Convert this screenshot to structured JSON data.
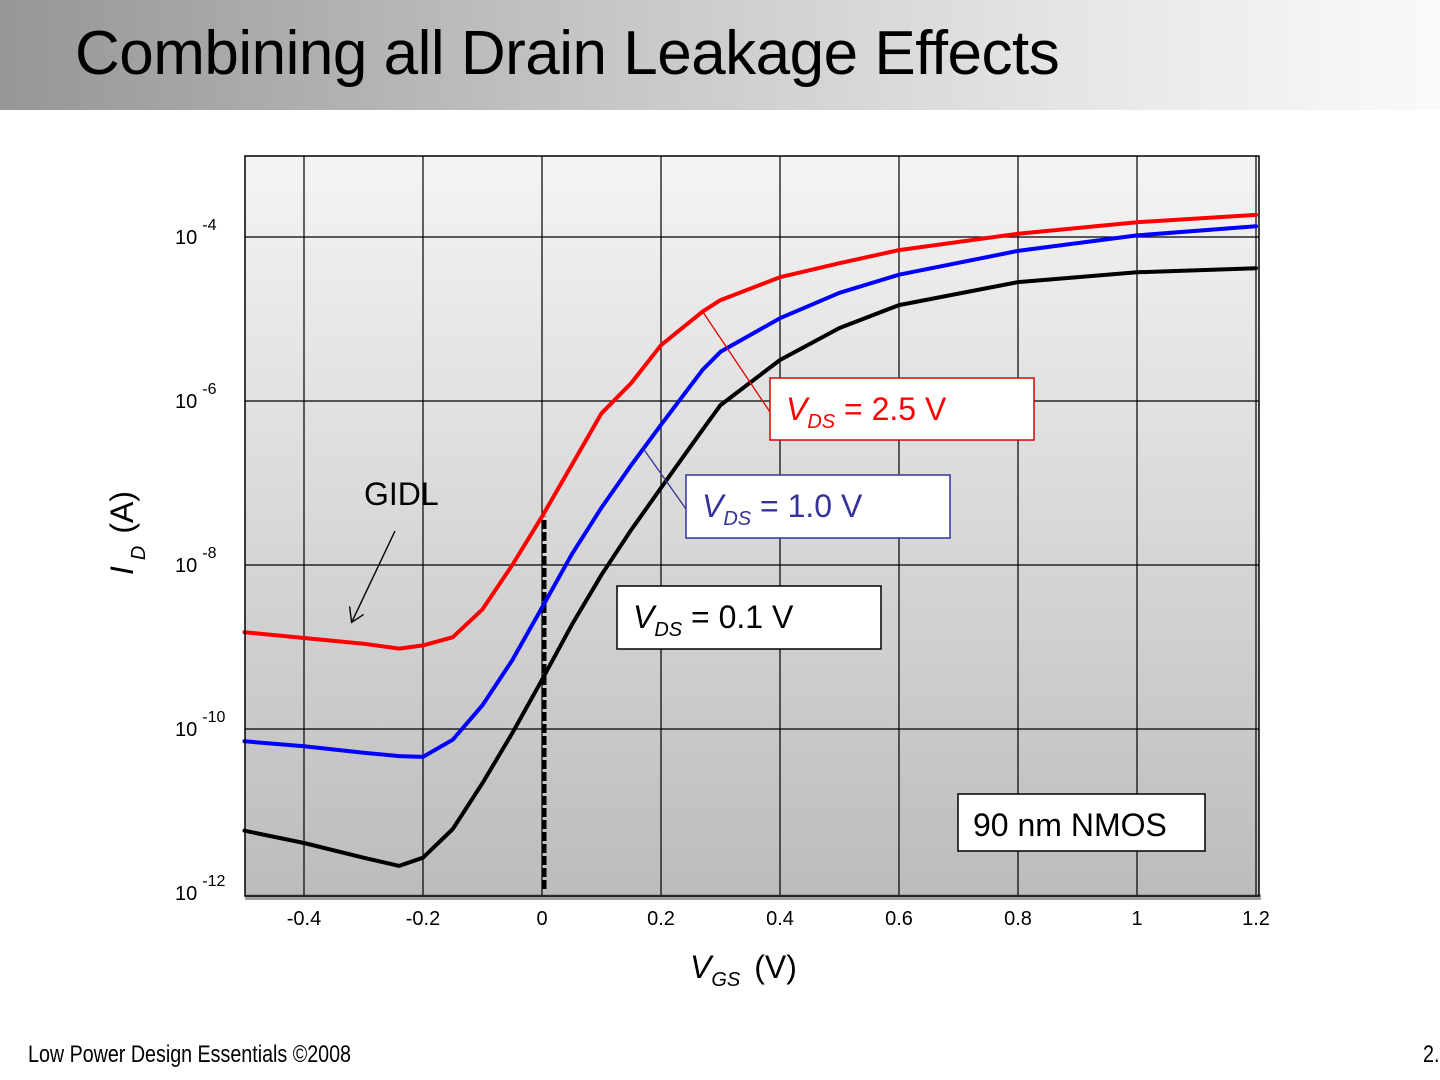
{
  "slide": {
    "title": "Combining all Drain Leakage Effects",
    "footer_left": "Low Power Design Essentials ©2008",
    "footer_right": "2."
  },
  "chart_data": {
    "type": "line",
    "title": "",
    "xlabel": {
      "main": "V",
      "sub": "GS",
      "unit": "(V)"
    },
    "ylabel": {
      "main": "I",
      "sub": "D",
      "unit": "(A)"
    },
    "xscale": "linear",
    "yscale": "log",
    "xlim": [
      -0.5,
      1.2
    ],
    "ylim_log10": [
      -12,
      -3
    ],
    "grid": true,
    "x_ticks": [
      -0.4,
      -0.2,
      0,
      0.2,
      0.4,
      0.6,
      0.8,
      1,
      1.2
    ],
    "x_tick_labels": [
      "-0.4",
      "-0.2",
      "0",
      "0.2",
      "0.4",
      "0.6",
      "0.8",
      "1",
      "1.2"
    ],
    "y_ticks_log10": [
      -4,
      -6,
      -8,
      -10,
      -12
    ],
    "y_tick_labels": [
      {
        "base": "10",
        "exp": "-4"
      },
      {
        "base": "10",
        "exp": "-6"
      },
      {
        "base": "10",
        "exp": "-8"
      },
      {
        "base": "10",
        "exp": "-10"
      },
      {
        "base": "10",
        "exp": "-12"
      }
    ],
    "x": [
      -0.5,
      -0.4,
      -0.3,
      -0.24,
      -0.2,
      -0.15,
      -0.1,
      -0.05,
      0,
      0.05,
      0.1,
      0.15,
      0.2,
      0.27,
      0.3,
      0.4,
      0.5,
      0.6,
      0.8,
      1.0,
      1.2
    ],
    "series": [
      {
        "name": "VDS = 2.5 V",
        "color": "#ff0000",
        "log10_values": [
          -8.82,
          -8.89,
          -8.96,
          -9.02,
          -8.98,
          -8.88,
          -8.54,
          -8.0,
          -7.41,
          -6.78,
          -6.15,
          -5.78,
          -5.32,
          -4.91,
          -4.77,
          -4.49,
          -4.32,
          -4.16,
          -3.96,
          -3.82,
          -3.73
        ]
      },
      {
        "name": "VDS = 1.0 V",
        "color": "#0000ff",
        "log10_values": [
          -10.15,
          -10.21,
          -10.29,
          -10.33,
          -10.34,
          -10.13,
          -9.71,
          -9.16,
          -8.52,
          -7.87,
          -7.3,
          -6.78,
          -6.29,
          -5.62,
          -5.4,
          -4.99,
          -4.68,
          -4.46,
          -4.17,
          -3.98,
          -3.87
        ]
      },
      {
        "name": "VDS = 0.1 V",
        "color": "#000000",
        "log10_values": [
          -11.24,
          -11.39,
          -11.57,
          -11.67,
          -11.57,
          -11.22,
          -10.66,
          -10.05,
          -9.4,
          -8.73,
          -8.12,
          -7.57,
          -7.06,
          -6.35,
          -6.05,
          -5.5,
          -5.11,
          -4.83,
          -4.55,
          -4.43,
          -4.38
        ]
      }
    ],
    "reference_line": {
      "x": 0,
      "style": "dashed",
      "color": "#000000",
      "from_log10": -12,
      "to_log10": -7.41
    },
    "annotations": {
      "gidl": {
        "text": "GIDL",
        "arrow_to": {
          "x": -0.32,
          "log10": -8.7
        }
      },
      "labels": [
        {
          "v": "V",
          "sub": "DS",
          "rest": " = 2.5 V",
          "color": "#ff0000",
          "border": "#e00000",
          "leader_to": {
            "x": 0.27,
            "log10": -4.91
          }
        },
        {
          "v": "V",
          "sub": "DS",
          "rest": " = 1.0 V",
          "color": "#333399",
          "border": "#333399",
          "leader_to": {
            "x": 0.17,
            "log10": -6.58
          }
        },
        {
          "v": "V",
          "sub": "DS",
          "rest": " = 0.1 V",
          "color": "#000000",
          "border": "#000000"
        }
      ],
      "device": "90 nm NMOS"
    }
  }
}
